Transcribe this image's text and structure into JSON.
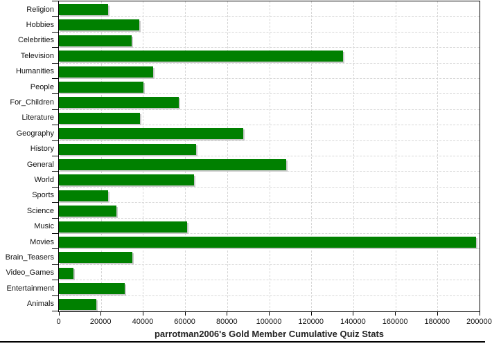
{
  "title": "parrotman2006's Gold Member Cumulative Quiz Stats",
  "colors": {
    "bar": "#008000",
    "bar_shadow": "#c9c9c9",
    "grid": "#d6d6d6",
    "axis": "#000000",
    "title_text": "#222222",
    "background": "#ffffff"
  },
  "chart_data": {
    "type": "bar",
    "orientation": "horizontal",
    "title": "parrotman2006's Gold Member Cumulative Quiz Stats",
    "categories": [
      "Religion",
      "Hobbies",
      "Celebrities",
      "Television",
      "Humanities",
      "People",
      "For_Children",
      "Literature",
      "Geography",
      "History",
      "General",
      "World",
      "Sports",
      "Science",
      "Music",
      "Movies",
      "Brain_Teasers",
      "Video_Games",
      "Entertainment",
      "Animals"
    ],
    "values": [
      23300,
      38200,
      34600,
      135200,
      44700,
      40300,
      57000,
      38600,
      87600,
      65100,
      108100,
      64200,
      23300,
      27400,
      61100,
      198400,
      34800,
      6900,
      31200,
      17900
    ],
    "xlabel": "",
    "ylabel": "",
    "xlim": [
      0,
      200000
    ],
    "x_ticks": [
      "0",
      "20000",
      "40000",
      "60000",
      "80000",
      "100000",
      "120000",
      "140000",
      "160000",
      "180000",
      "200000"
    ],
    "grid": true,
    "legend": "none"
  }
}
